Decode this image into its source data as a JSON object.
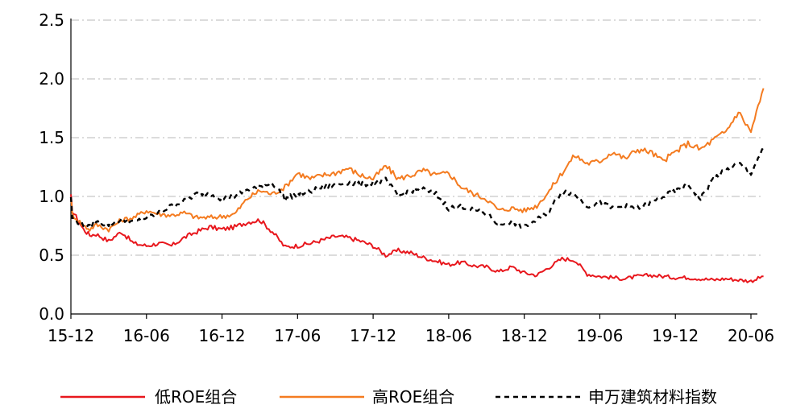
{
  "chart_data": {
    "type": "line",
    "title": "",
    "xlabel": "",
    "ylabel": "",
    "ylim": [
      0,
      2.5
    ],
    "yticks": [
      "0.0",
      "0.5",
      "1.0",
      "1.5",
      "2.0",
      "2.5"
    ],
    "xticks": [
      "15-12",
      "16-06",
      "16-12",
      "17-06",
      "17-12",
      "18-06",
      "18-12",
      "19-06",
      "19-12",
      "20-06"
    ],
    "grid": "horizontal dash-dot",
    "legend_position": "bottom",
    "series": [
      {
        "name": "低ROE组合",
        "color": "#e8171d",
        "style": "solid",
        "values": [
          [
            "15-12",
            1.0
          ],
          [
            "15-12+0.1",
            0.88
          ],
          [
            "16-01",
            0.72
          ],
          [
            "16-01+",
            0.67
          ],
          [
            "16-02",
            0.68
          ],
          [
            "16-03",
            0.62
          ],
          [
            "16-04",
            0.7
          ],
          [
            "16-05",
            0.6
          ],
          [
            "16-06",
            0.58
          ],
          [
            "16-07",
            0.6
          ],
          [
            "16-08",
            0.58
          ],
          [
            "16-09",
            0.65
          ],
          [
            "16-10",
            0.7
          ],
          [
            "16-11",
            0.74
          ],
          [
            "16-12",
            0.72
          ],
          [
            "17-01",
            0.74
          ],
          [
            "17-02",
            0.78
          ],
          [
            "17-03",
            0.8
          ],
          [
            "17-04",
            0.7
          ],
          [
            "17-05",
            0.57
          ],
          [
            "17-06",
            0.58
          ],
          [
            "17-07",
            0.6
          ],
          [
            "17-08",
            0.63
          ],
          [
            "17-09",
            0.66
          ],
          [
            "17-10",
            0.65
          ],
          [
            "17-11",
            0.62
          ],
          [
            "17-12",
            0.58
          ],
          [
            "18-01",
            0.5
          ],
          [
            "18-02",
            0.54
          ],
          [
            "18-03",
            0.52
          ],
          [
            "18-04",
            0.48
          ],
          [
            "18-05",
            0.45
          ],
          [
            "18-06",
            0.42
          ],
          [
            "18-07",
            0.44
          ],
          [
            "18-08",
            0.41
          ],
          [
            "18-09",
            0.4
          ],
          [
            "18-10",
            0.36
          ],
          [
            "18-11",
            0.4
          ],
          [
            "18-12",
            0.35
          ],
          [
            "19-01",
            0.33
          ],
          [
            "19-02",
            0.4
          ],
          [
            "19-03",
            0.47
          ],
          [
            "19-04",
            0.46
          ],
          [
            "19-05",
            0.34
          ],
          [
            "19-06",
            0.32
          ],
          [
            "19-07",
            0.31
          ],
          [
            "19-08",
            0.3
          ],
          [
            "19-09",
            0.32
          ],
          [
            "19-10",
            0.33
          ],
          [
            "19-11",
            0.32
          ],
          [
            "19-12",
            0.31
          ],
          [
            "20-01",
            0.31
          ],
          [
            "20-02",
            0.3
          ],
          [
            "20-03",
            0.29
          ],
          [
            "20-04",
            0.3
          ],
          [
            "20-05",
            0.29
          ],
          [
            "20-06",
            0.28
          ],
          [
            "20-07",
            0.32
          ]
        ]
      },
      {
        "name": "高ROE组合",
        "color": "#f47b20",
        "style": "solid",
        "values": [
          [
            "15-12",
            1.0
          ],
          [
            "15-12+0.1",
            0.85
          ],
          [
            "16-01",
            0.75
          ],
          [
            "16-01+",
            0.72
          ],
          [
            "16-02",
            0.76
          ],
          [
            "16-03",
            0.72
          ],
          [
            "16-04",
            0.8
          ],
          [
            "16-05",
            0.82
          ],
          [
            "16-06",
            0.88
          ],
          [
            "16-07",
            0.85
          ],
          [
            "16-08",
            0.84
          ],
          [
            "16-09",
            0.86
          ],
          [
            "16-10",
            0.82
          ],
          [
            "16-11",
            0.82
          ],
          [
            "16-12",
            0.83
          ],
          [
            "17-01",
            0.85
          ],
          [
            "17-02",
            0.98
          ],
          [
            "17-03",
            1.05
          ],
          [
            "17-04",
            1.02
          ],
          [
            "17-05",
            1.08
          ],
          [
            "17-06",
            1.2
          ],
          [
            "17-07",
            1.15
          ],
          [
            "17-08",
            1.18
          ],
          [
            "17-09",
            1.2
          ],
          [
            "17-10",
            1.24
          ],
          [
            "17-11",
            1.18
          ],
          [
            "17-12",
            1.15
          ],
          [
            "18-01",
            1.26
          ],
          [
            "18-02",
            1.15
          ],
          [
            "18-03",
            1.18
          ],
          [
            "18-04",
            1.22
          ],
          [
            "18-05",
            1.18
          ],
          [
            "18-06",
            1.2
          ],
          [
            "18-07",
            1.08
          ],
          [
            "18-08",
            1.02
          ],
          [
            "18-09",
            0.98
          ],
          [
            "18-10",
            0.88
          ],
          [
            "18-11",
            0.9
          ],
          [
            "18-12",
            0.88
          ],
          [
            "19-01",
            0.92
          ],
          [
            "19-02",
            1.05
          ],
          [
            "19-03",
            1.2
          ],
          [
            "19-04",
            1.35
          ],
          [
            "19-05",
            1.28
          ],
          [
            "19-06",
            1.3
          ],
          [
            "19-07",
            1.38
          ],
          [
            "19-08",
            1.32
          ],
          [
            "19-09",
            1.4
          ],
          [
            "19-10",
            1.38
          ],
          [
            "19-11",
            1.3
          ],
          [
            "19-12",
            1.38
          ],
          [
            "20-01",
            1.45
          ],
          [
            "20-02",
            1.4
          ],
          [
            "20-03",
            1.48
          ],
          [
            "20-04",
            1.55
          ],
          [
            "20-05",
            1.72
          ],
          [
            "20-06",
            1.55
          ],
          [
            "20-07",
            1.92
          ]
        ]
      },
      {
        "name": "申万建筑材料指数",
        "color": "#000000",
        "style": "dashed",
        "values": [
          [
            "15-12",
            1.0
          ],
          [
            "15-12+0.1",
            0.82
          ],
          [
            "16-01",
            0.75
          ],
          [
            "16-01+",
            0.74
          ],
          [
            "16-02",
            0.78
          ],
          [
            "16-03",
            0.76
          ],
          [
            "16-04",
            0.8
          ],
          [
            "16-05",
            0.78
          ],
          [
            "16-06",
            0.82
          ],
          [
            "16-07",
            0.86
          ],
          [
            "16-08",
            0.92
          ],
          [
            "16-09",
            0.96
          ],
          [
            "16-10",
            1.02
          ],
          [
            "16-11",
            1.03
          ],
          [
            "16-12",
            0.98
          ],
          [
            "17-01",
            1.0
          ],
          [
            "17-02",
            1.06
          ],
          [
            "17-03",
            1.08
          ],
          [
            "17-04",
            1.12
          ],
          [
            "17-05",
            0.98
          ],
          [
            "17-06",
            1.02
          ],
          [
            "17-07",
            1.04
          ],
          [
            "17-08",
            1.08
          ],
          [
            "17-09",
            1.1
          ],
          [
            "17-10",
            1.12
          ],
          [
            "17-11",
            1.1
          ],
          [
            "17-12",
            1.12
          ],
          [
            "18-01",
            1.14
          ],
          [
            "18-02",
            1.0
          ],
          [
            "18-03",
            1.05
          ],
          [
            "18-04",
            1.06
          ],
          [
            "18-05",
            1.02
          ],
          [
            "18-06",
            0.9
          ],
          [
            "18-07",
            0.92
          ],
          [
            "18-08",
            0.88
          ],
          [
            "18-09",
            0.85
          ],
          [
            "18-10",
            0.76
          ],
          [
            "18-11",
            0.78
          ],
          [
            "18-12",
            0.74
          ],
          [
            "19-01",
            0.8
          ],
          [
            "19-02",
            0.88
          ],
          [
            "19-03",
            1.05
          ],
          [
            "19-04",
            1.02
          ],
          [
            "19-05",
            0.92
          ],
          [
            "19-06",
            0.95
          ],
          [
            "19-07",
            0.9
          ],
          [
            "19-08",
            0.92
          ],
          [
            "19-09",
            0.9
          ],
          [
            "19-10",
            0.94
          ],
          [
            "19-11",
            1.0
          ],
          [
            "19-12",
            1.04
          ],
          [
            "20-01",
            1.1
          ],
          [
            "20-02",
            0.98
          ],
          [
            "20-03",
            1.15
          ],
          [
            "20-04",
            1.22
          ],
          [
            "20-05",
            1.28
          ],
          [
            "20-06",
            1.2
          ],
          [
            "20-07",
            1.42
          ]
        ]
      }
    ]
  }
}
